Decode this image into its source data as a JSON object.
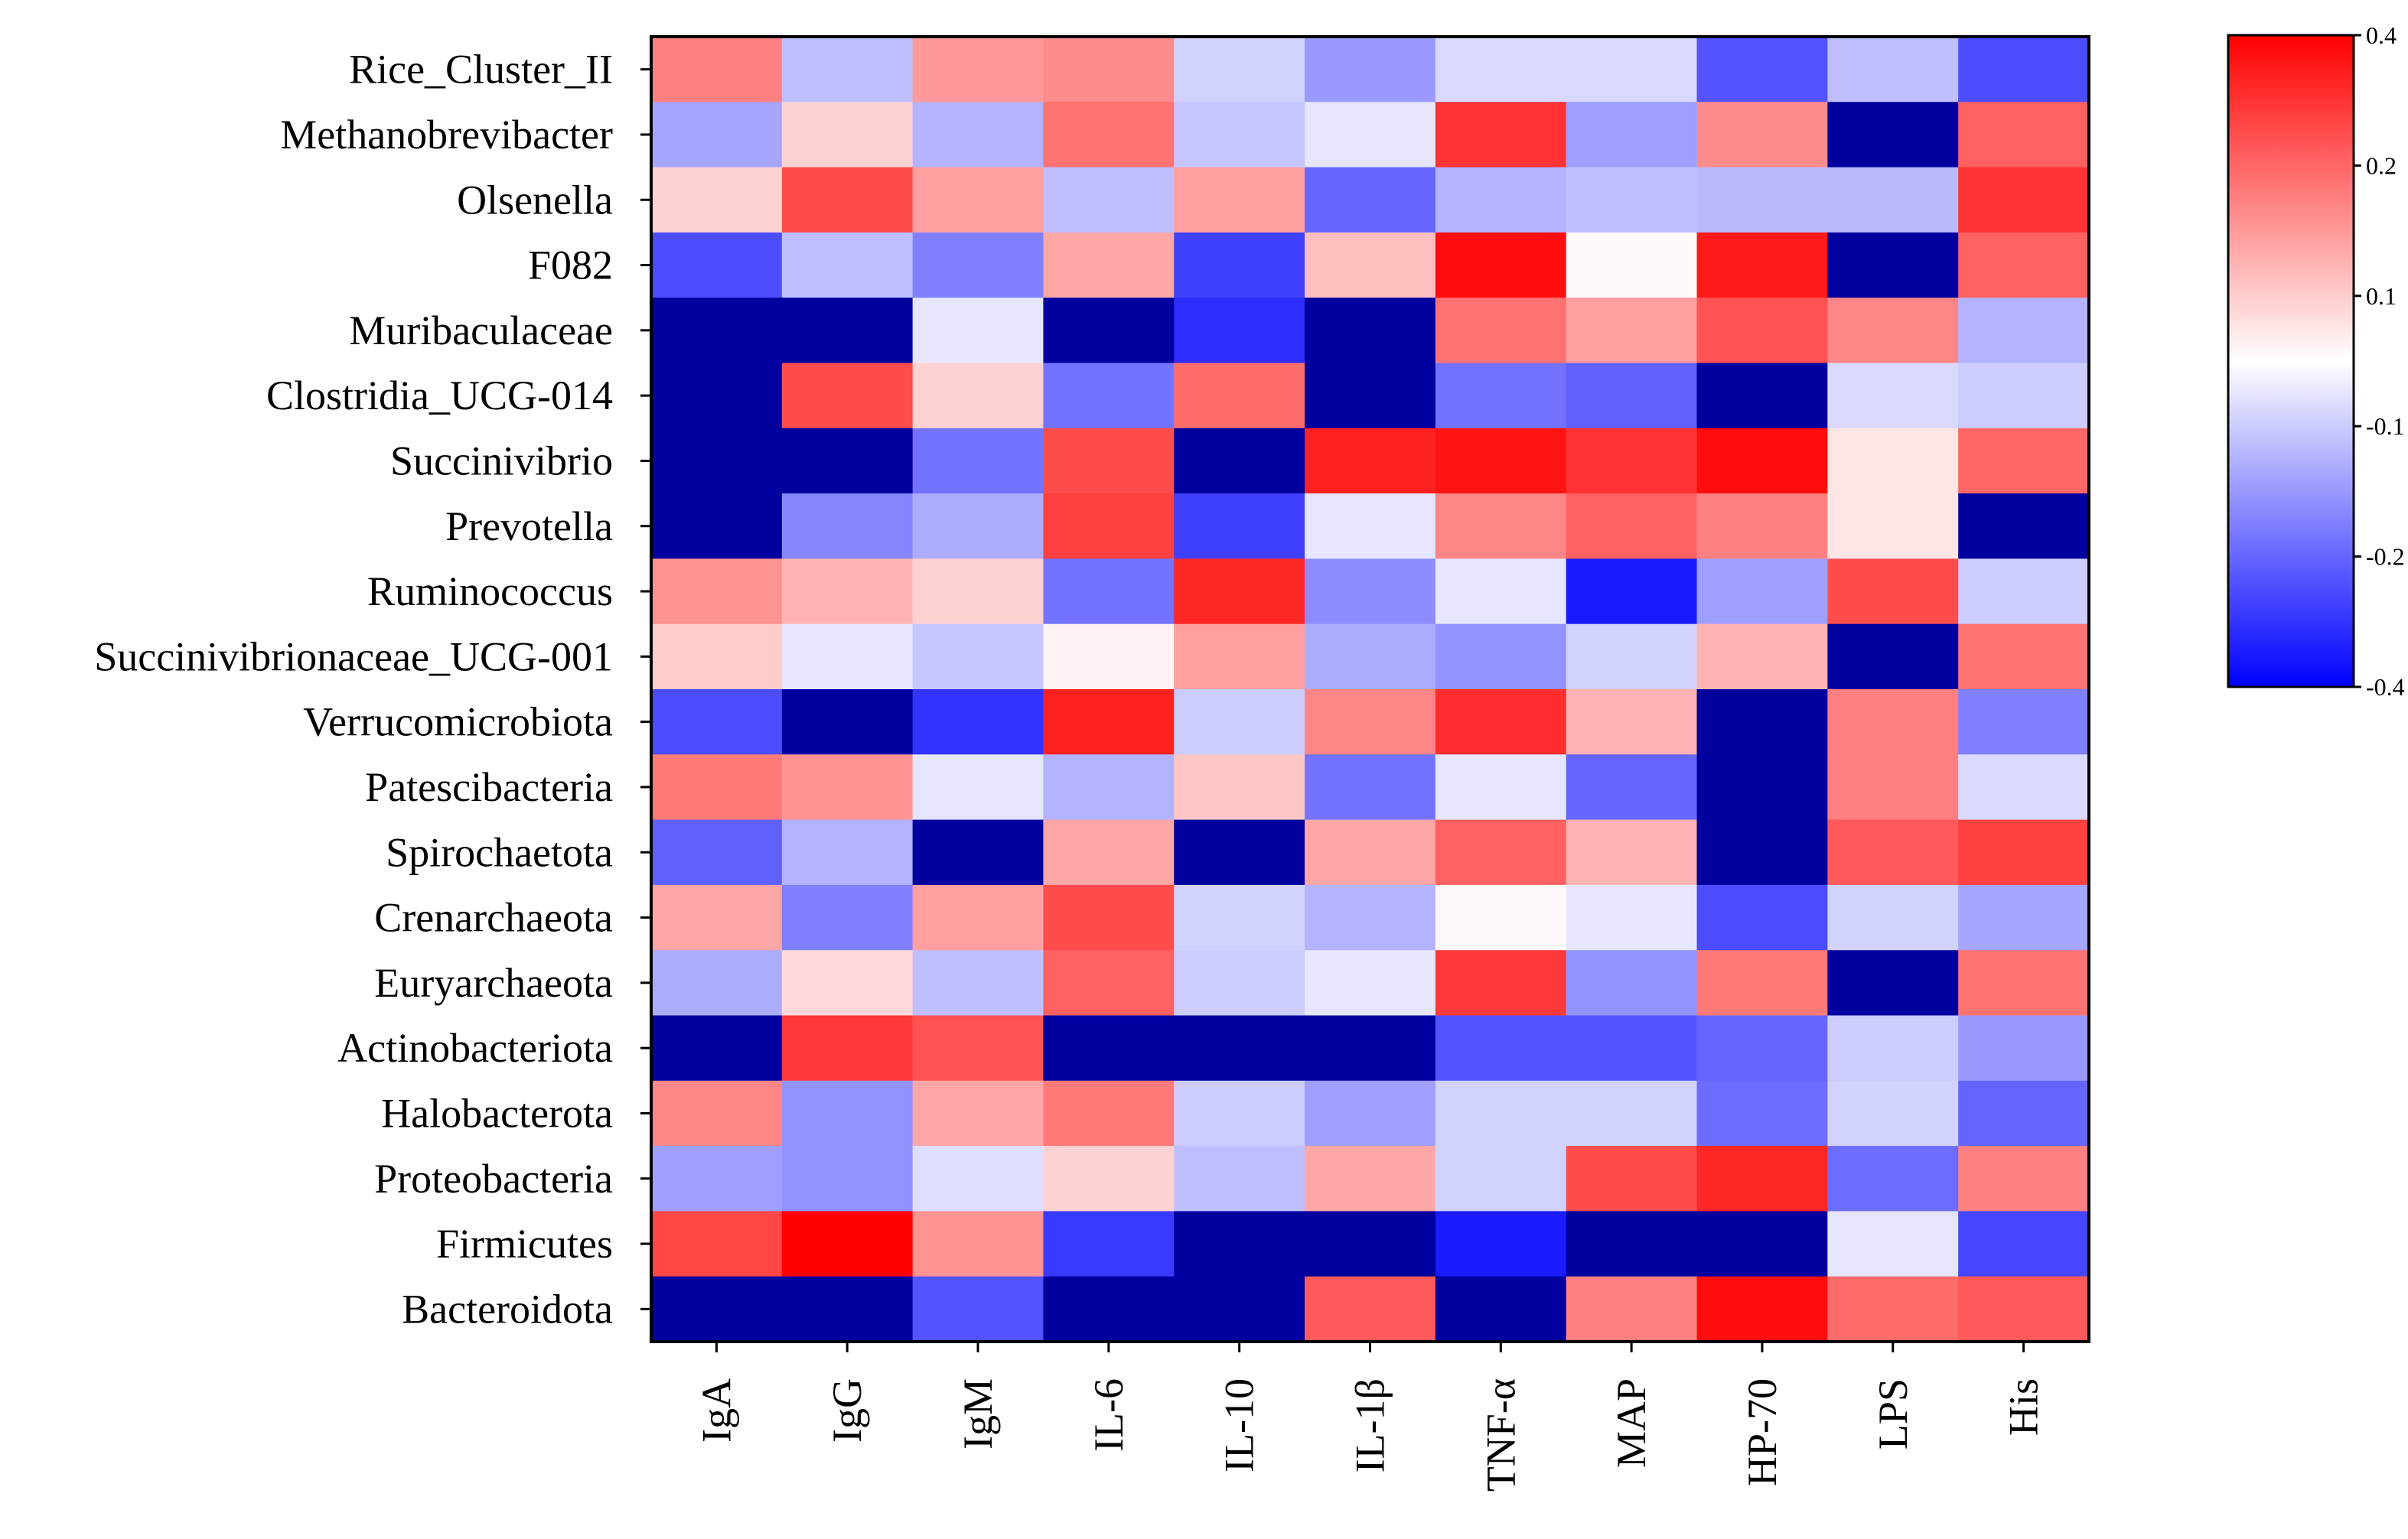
{
  "chart_data": {
    "type": "heatmap",
    "rows": [
      "Rice_Cluster_II",
      "Methanobrevibacter",
      "Olsenella",
      "F082",
      "Muribaculaceae",
      "Clostridia_UCG-014",
      "Succinivibrio",
      "Prevotella",
      "Ruminococcus",
      "Succinivibrionaceae_UCG-001",
      "Verrucomicrobiota",
      "Patescibacteria",
      "Spirochaetota",
      "Crenarchaeota",
      "Euryarchaeota",
      "Actinobacteriota",
      "Halobacterota",
      "Proteobacteria",
      "Firmicutes",
      "Bacteroidota"
    ],
    "columns": [
      "IgA",
      "IgG",
      "IgM",
      "IL-6",
      "IL-10",
      "IL-1β",
      "TNF-α",
      "MAP",
      "HP-70",
      "LPS",
      "His"
    ],
    "values": [
      [
        0.2,
        -0.1,
        0.16,
        0.18,
        -0.07,
        -0.16,
        -0.06,
        -0.06,
        -0.27,
        -0.1,
        -0.28
      ],
      [
        -0.14,
        0.07,
        -0.12,
        0.22,
        -0.09,
        -0.04,
        0.32,
        -0.15,
        0.18,
        -0.5,
        0.25
      ],
      [
        0.07,
        0.28,
        0.15,
        -0.1,
        0.15,
        -0.24,
        -0.12,
        -0.1,
        -0.11,
        -0.11,
        0.32
      ],
      [
        -0.28,
        -0.1,
        -0.2,
        0.14,
        -0.3,
        0.1,
        0.38,
        0.01,
        0.36,
        -0.5,
        0.25
      ],
      [
        -0.5,
        -0.5,
        -0.04,
        -0.5,
        -0.33,
        -0.5,
        0.22,
        0.15,
        0.27,
        0.19,
        -0.12
      ],
      [
        -0.5,
        0.28,
        0.07,
        -0.22,
        0.23,
        -0.5,
        -0.22,
        -0.25,
        -0.5,
        -0.06,
        -0.08
      ],
      [
        -0.5,
        -0.5,
        -0.22,
        0.28,
        -0.5,
        0.35,
        0.37,
        0.32,
        0.38,
        0.04,
        0.24
      ],
      [
        -0.5,
        -0.19,
        -0.13,
        0.3,
        -0.3,
        -0.04,
        0.19,
        0.25,
        0.2,
        0.04,
        -0.5
      ],
      [
        0.17,
        0.12,
        0.07,
        -0.22,
        0.34,
        -0.18,
        -0.04,
        -0.36,
        -0.15,
        0.28,
        -0.08
      ],
      [
        0.08,
        -0.04,
        -0.09,
        0.02,
        0.15,
        -0.13,
        -0.17,
        -0.07,
        0.12,
        -0.5,
        0.22
      ],
      [
        -0.28,
        -0.5,
        -0.32,
        0.35,
        -0.08,
        0.19,
        0.33,
        0.12,
        -0.5,
        0.2,
        -0.2
      ],
      [
        0.21,
        0.17,
        -0.04,
        -0.12,
        0.09,
        -0.22,
        -0.04,
        -0.24,
        -0.5,
        0.2,
        -0.06
      ],
      [
        -0.25,
        -0.12,
        -0.5,
        0.14,
        -0.5,
        0.14,
        0.25,
        0.12,
        -0.5,
        0.26,
        0.3
      ],
      [
        0.14,
        -0.2,
        0.15,
        0.28,
        -0.07,
        -0.12,
        0.01,
        -0.04,
        -0.28,
        -0.07,
        -0.14
      ],
      [
        -0.13,
        0.06,
        -0.1,
        0.25,
        -0.08,
        -0.04,
        0.31,
        -0.17,
        0.21,
        -0.5,
        0.22
      ],
      [
        -0.5,
        0.31,
        0.27,
        -0.5,
        -0.5,
        -0.5,
        -0.27,
        -0.27,
        -0.24,
        -0.08,
        -0.16
      ],
      [
        0.19,
        -0.17,
        0.14,
        0.21,
        -0.08,
        -0.15,
        -0.07,
        -0.07,
        -0.23,
        -0.07,
        -0.24
      ],
      [
        -0.15,
        -0.17,
        -0.05,
        0.07,
        -0.1,
        0.14,
        -0.07,
        0.28,
        0.34,
        -0.23,
        0.2
      ],
      [
        0.29,
        0.4,
        0.17,
        -0.31,
        -0.5,
        -0.5,
        -0.36,
        -0.5,
        -0.5,
        -0.04,
        -0.29
      ],
      [
        -0.5,
        -0.5,
        -0.27,
        -0.5,
        -0.5,
        0.26,
        -0.5,
        0.2,
        0.38,
        0.23,
        0.26
      ]
    ],
    "colorbar": {
      "ticks": [
        0.4,
        0.2,
        0.1,
        -0.1,
        -0.2,
        -0.4
      ],
      "tick_labels": [
        "0.4",
        "0.2",
        "0.1",
        "-0.1",
        "-0.2",
        "-0.4"
      ],
      "min": -0.4,
      "max": 0.4,
      "clip_color": "#00009e",
      "low_color": "#0000ff",
      "mid_color": "#ffffff",
      "high_color": "#ff0000"
    },
    "title": "",
    "xlabel": "",
    "ylabel": ""
  }
}
